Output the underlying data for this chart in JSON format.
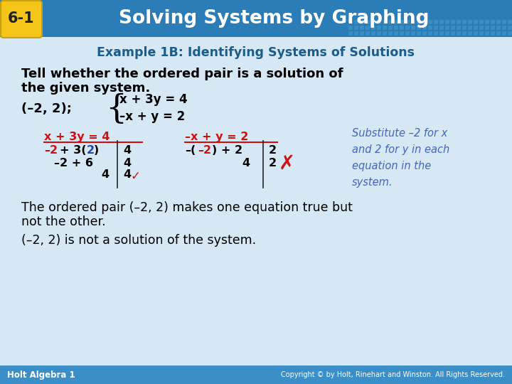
{
  "bg_color": "#d6e8f4",
  "header_bg_left": "#2b7ab5",
  "header_bg_right": "#3a8fc8",
  "header_badge_bg": "#f5c518",
  "header_badge_text": "6-1",
  "header_title": "Solving Systems by Graphing",
  "header_title_color": "#ffffff",
  "example_title": "Example 1B: Identifying Systems of Solutions",
  "example_title_color": "#1a5c8a",
  "body_text_color": "#000000",
  "red_color": "#cc1111",
  "blue_color": "#2244aa",
  "blue_italic_color": "#4466bb",
  "footer_bg": "#3a8fc8",
  "footer_left": "Holt Algebra 1",
  "footer_right": "Copyright © by Holt, Rinehart and Winston. All Rights Reserved.",
  "footer_text_color": "#ffffff"
}
